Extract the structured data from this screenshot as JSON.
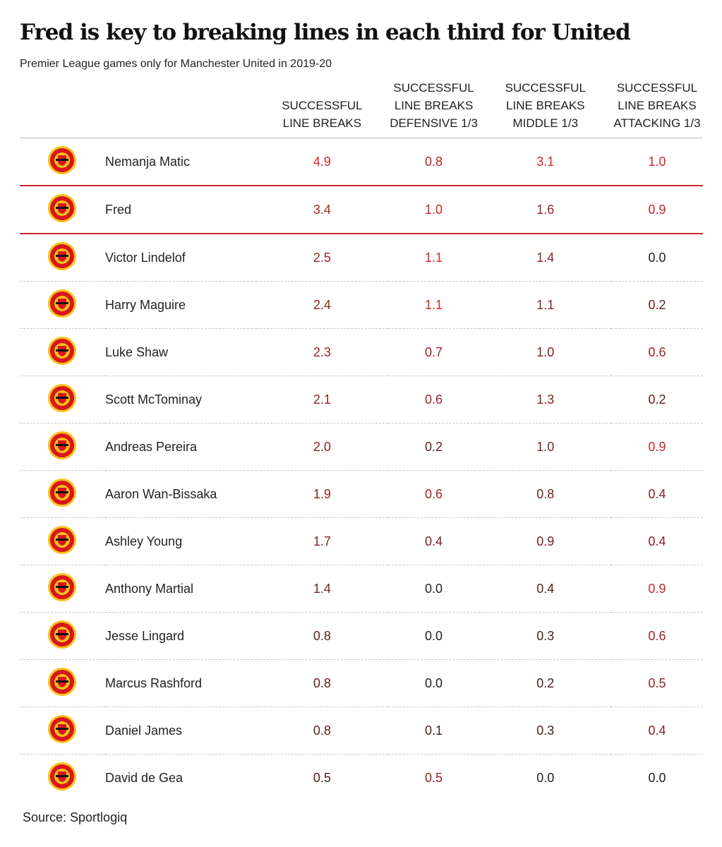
{
  "header": {
    "title": "Fred is key to breaking lines in each third for United",
    "subtitle": "Premier League games only for Manchester United in 2019-20"
  },
  "table": {
    "columns": [
      "SUCCESSFUL LINE BREAKS",
      "SUCCESSFUL LINE BREAKS DEFENSIVE 1/3",
      "SUCCESSFUL LINE BREAKS MIDDLE 1/3",
      "SUCCESSFUL LINE BREAKS ATTACKING 1/3"
    ],
    "rows": [
      [
        "Nemanja Matic",
        "4.9",
        "0.8",
        "3.1",
        "1.0"
      ],
      [
        "Fred",
        "3.4",
        "1.0",
        "1.6",
        "0.9"
      ],
      [
        "Victor Lindelof",
        "2.5",
        "1.1",
        "1.4",
        "0.0"
      ],
      [
        "Harry Maguire",
        "2.4",
        "1.1",
        "1.1",
        "0.2"
      ],
      [
        "Luke Shaw",
        "2.3",
        "0.7",
        "1.0",
        "0.6"
      ],
      [
        "Scott McTominay",
        "2.1",
        "0.6",
        "1.3",
        "0.2"
      ],
      [
        "Andreas Pereira",
        "2.0",
        "0.2",
        "1.0",
        "0.9"
      ],
      [
        "Aaron Wan-Bissaka",
        "1.9",
        "0.6",
        "0.8",
        "0.4"
      ],
      [
        "Ashley Young",
        "1.7",
        "0.4",
        "0.9",
        "0.4"
      ],
      [
        "Anthony Martial",
        "1.4",
        "0.0",
        "0.4",
        "0.9"
      ],
      [
        "Jesse Lingard",
        "0.8",
        "0.0",
        "0.3",
        "0.6"
      ],
      [
        "Marcus Rashford",
        "0.8",
        "0.0",
        "0.2",
        "0.5"
      ],
      [
        "Daniel James",
        "0.8",
        "0.1",
        "0.3",
        "0.4"
      ],
      [
        "David de Gea",
        "0.5",
        "0.5",
        "0.0",
        "0.0"
      ]
    ]
  },
  "footer": {
    "source": "Source: Sportlogiq"
  }
}
